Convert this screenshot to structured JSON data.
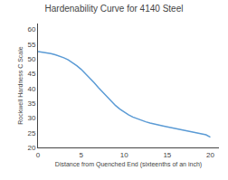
{
  "chart_data": {
    "type": "line",
    "title": "Hardenability Curve for 4140 Steel",
    "xlabel": "Distance from Quenched End (sixteenths of an inch)",
    "ylabel": "Rockwell Hardness C Scale",
    "x": [
      0,
      0.5,
      1,
      1.5,
      2,
      2.5,
      3,
      3.5,
      4,
      4.5,
      5,
      5.5,
      6,
      6.5,
      7,
      7.5,
      8,
      8.5,
      9,
      9.5,
      10,
      10.5,
      11,
      11.5,
      12,
      12.5,
      13,
      13.5,
      14,
      14.5,
      15,
      15.5,
      16,
      16.5,
      17,
      17.5,
      18,
      18.5,
      19,
      19.5,
      20
    ],
    "values": [
      52.5,
      52.3,
      52.1,
      51.8,
      51.4,
      51.0,
      50.4,
      49.7,
      48.8,
      47.7,
      46.5,
      45.1,
      43.6,
      42.0,
      40.3,
      38.7,
      37.1,
      35.6,
      34.2,
      33.0,
      32.0,
      31.1,
      30.3,
      29.7,
      29.2,
      28.7,
      28.3,
      27.9,
      27.6,
      27.3,
      27.0,
      26.7,
      26.4,
      26.1,
      25.8,
      25.5,
      25.2,
      24.9,
      24.6,
      24.3,
      23.5
    ],
    "color": "#5b9bd5",
    "xlim": [
      0,
      21
    ],
    "ylim": [
      20,
      62
    ],
    "xticks": [
      0,
      5,
      10,
      15,
      20
    ],
    "yticks": [
      20,
      25,
      30,
      35,
      40,
      45,
      50,
      55,
      60
    ],
    "grid": false
  }
}
